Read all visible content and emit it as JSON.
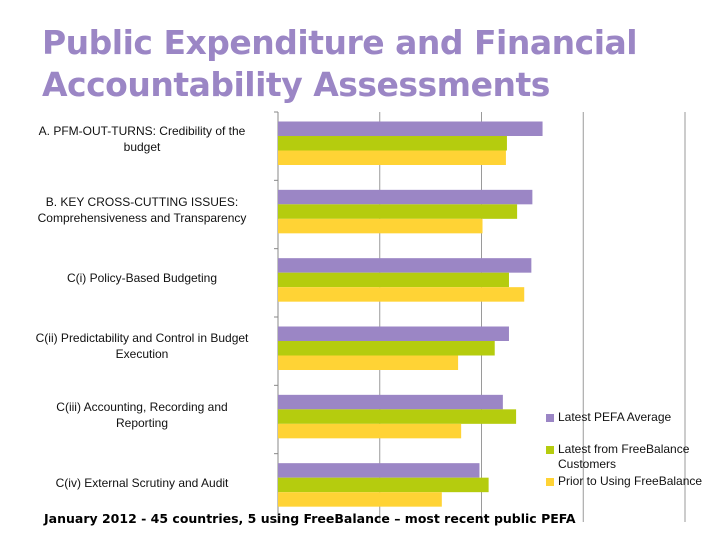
{
  "title_line1": "Public Expenditure and Financial",
  "title_line2": "Accountability Assessments",
  "footnote": "January 2012 - 45 countries, 5 using FreeBalance – most recent public PEFA",
  "chart_data": {
    "type": "bar",
    "orientation": "horizontal",
    "title": "",
    "xlabel": "",
    "ylabel": "",
    "xlim": [
      0,
      4
    ],
    "grid": true,
    "legend_position": "right-bottom",
    "categories": [
      [
        "A. PFM-OUT-TURNS: Credibility of the",
        "budget"
      ],
      [
        "B. KEY CROSS-CUTTING ISSUES:",
        "Comprehensiveness and Transparency"
      ],
      [
        "C(i) Policy-Based Budgeting"
      ],
      [
        "C(ii) Predictability and Control in Budget",
        "Execution"
      ],
      [
        "C(iii) Accounting, Recording and",
        "Reporting"
      ],
      [
        "C(iv) External Scrutiny and Audit"
      ]
    ],
    "series": [
      {
        "name": "Latest PEFA Average",
        "color": "#9b86c5",
        "values": [
          2.6,
          2.5,
          2.49,
          2.27,
          2.21,
          1.98
        ]
      },
      {
        "name": "Latest from FreeBalance Customers",
        "color": "#b5cc0e",
        "values": [
          2.25,
          2.35,
          2.27,
          2.13,
          2.34,
          2.07
        ]
      },
      {
        "name": "Prior to Using FreeBalance",
        "color": "#ffd335",
        "values": [
          2.24,
          2.01,
          2.42,
          1.77,
          1.8,
          1.61
        ]
      }
    ]
  }
}
